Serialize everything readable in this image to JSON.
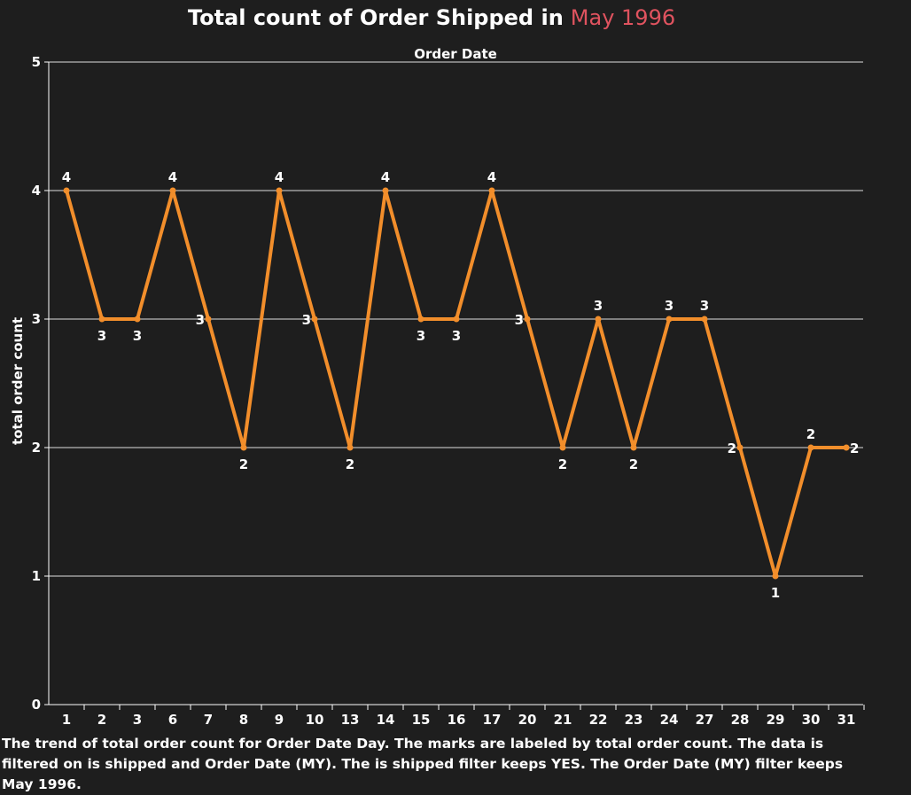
{
  "title": {
    "main": "Total count of Order Shipped in",
    "highlight": "May 1996"
  },
  "colors": {
    "background": "#1e1e1e",
    "line": "#f28e2b",
    "highlight": "#e0535f",
    "text": "#ffffff",
    "grid": "#ffffff"
  },
  "caption": "The trend of total order count for Order Date Day.  The marks are labeled by total order count. The data is filtered on is shipped and Order Date (MY). The is shipped filter keeps YES. The Order Date (MY) filter keeps May 1996.",
  "chart_data": {
    "type": "line",
    "subtitle": "Order Date",
    "ylabel": "total order count",
    "ylim": [
      0,
      5
    ],
    "yticks": [
      0,
      1,
      2,
      3,
      4,
      5
    ],
    "grid": true,
    "categories": [
      "1",
      "2",
      "3",
      "6",
      "7",
      "8",
      "9",
      "10",
      "13",
      "14",
      "15",
      "16",
      "17",
      "20",
      "21",
      "22",
      "23",
      "24",
      "27",
      "28",
      "29",
      "30",
      "31"
    ],
    "series": [
      {
        "values": [
          4,
          3,
          3,
          4,
          3,
          2,
          4,
          3,
          2,
          4,
          3,
          3,
          4,
          3,
          2,
          3,
          2,
          3,
          3,
          2,
          1,
          2,
          2
        ]
      }
    ]
  }
}
